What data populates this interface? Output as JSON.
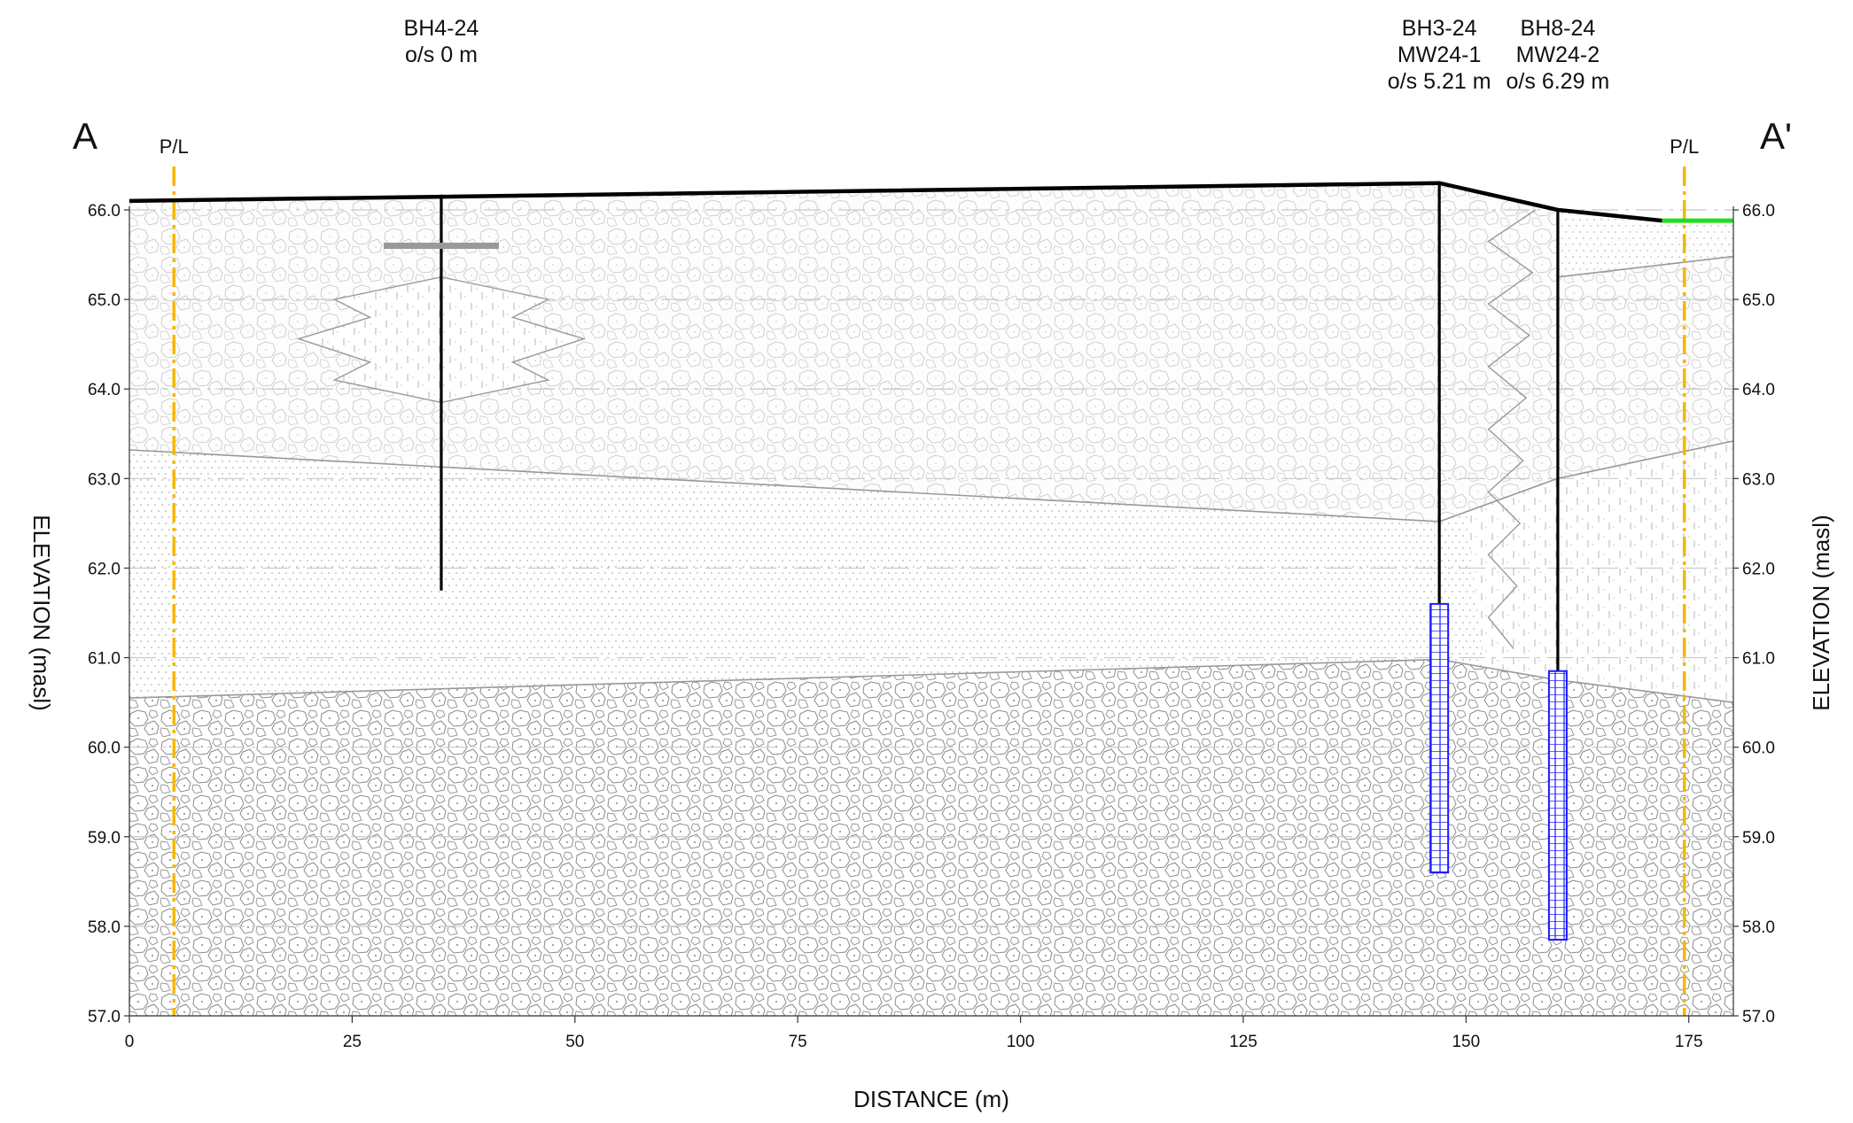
{
  "section": {
    "start_label": "A",
    "end_label": "A'",
    "property_line_label": "P/L",
    "x_axis_label": "DISTANCE (m)",
    "y_axis_label": "ELEVATION (masl)"
  },
  "boreholes": [
    {
      "id": "BH4-24",
      "lines": [
        "BH4-24",
        "o/s 0 m"
      ],
      "distance": 35,
      "top": 66.17,
      "bottom": 61.75,
      "water_level": 65.6
    },
    {
      "id": "BH3-24",
      "lines": [
        "BH3-24",
        "MW24-1",
        "o/s 5.21 m"
      ],
      "distance": 147,
      "top": 66.3,
      "bottom": 58.6,
      "screen_top": 61.6,
      "screen_bottom": 58.6
    },
    {
      "id": "BH8-24",
      "lines": [
        "BH8-24",
        "MW24-2",
        "o/s 6.29 m"
      ],
      "distance": 160.3,
      "top": 66.0,
      "bottom": 57.85,
      "screen_top": 60.85,
      "screen_bottom": 57.85
    }
  ],
  "property_lines": [
    5,
    174.5
  ],
  "colors": {
    "property_line": "#f5b800",
    "screen": "#1a1aff",
    "ground": "#000000",
    "water_level": "#999999",
    "surface_highlight": "#22dd22",
    "contact": "#999999"
  },
  "chart_data": {
    "type": "cross-section",
    "x": {
      "min": 0,
      "max": 180,
      "ticks": [
        0,
        25,
        50,
        75,
        100,
        125,
        150,
        175
      ],
      "tick_labels": [
        "0",
        "25",
        "50",
        "75",
        "100",
        "125",
        "150",
        "175"
      ]
    },
    "y": {
      "min": 57.0,
      "max": 66.0,
      "ticks": [
        57,
        58,
        59,
        60,
        61,
        62,
        63,
        64,
        65,
        66
      ],
      "tick_labels": [
        "57.0",
        "58.0",
        "59.0",
        "60.0",
        "61.0",
        "62.0",
        "63.0",
        "64.0",
        "65.0",
        "66.0"
      ]
    },
    "ground_surface": [
      [
        0,
        66.1
      ],
      [
        147,
        66.3
      ],
      [
        160.3,
        66.0
      ],
      [
        172,
        65.88
      ],
      [
        180,
        65.88
      ]
    ],
    "contacts": [
      [
        [
          0,
          63.32
        ],
        [
          147,
          62.52
        ],
        [
          160.3,
          63.0
        ],
        [
          180,
          63.42
        ]
      ],
      [
        [
          0,
          60.55
        ],
        [
          147,
          60.98
        ],
        [
          160.3,
          60.75
        ],
        [
          180,
          60.5
        ]
      ],
      [
        [
          160.3,
          65.25
        ],
        [
          180,
          65.48
        ]
      ]
    ],
    "lens_BH4": [
      [
        35,
        65.25
      ],
      [
        35,
        63.85
      ]
    ],
    "grid": true
  }
}
